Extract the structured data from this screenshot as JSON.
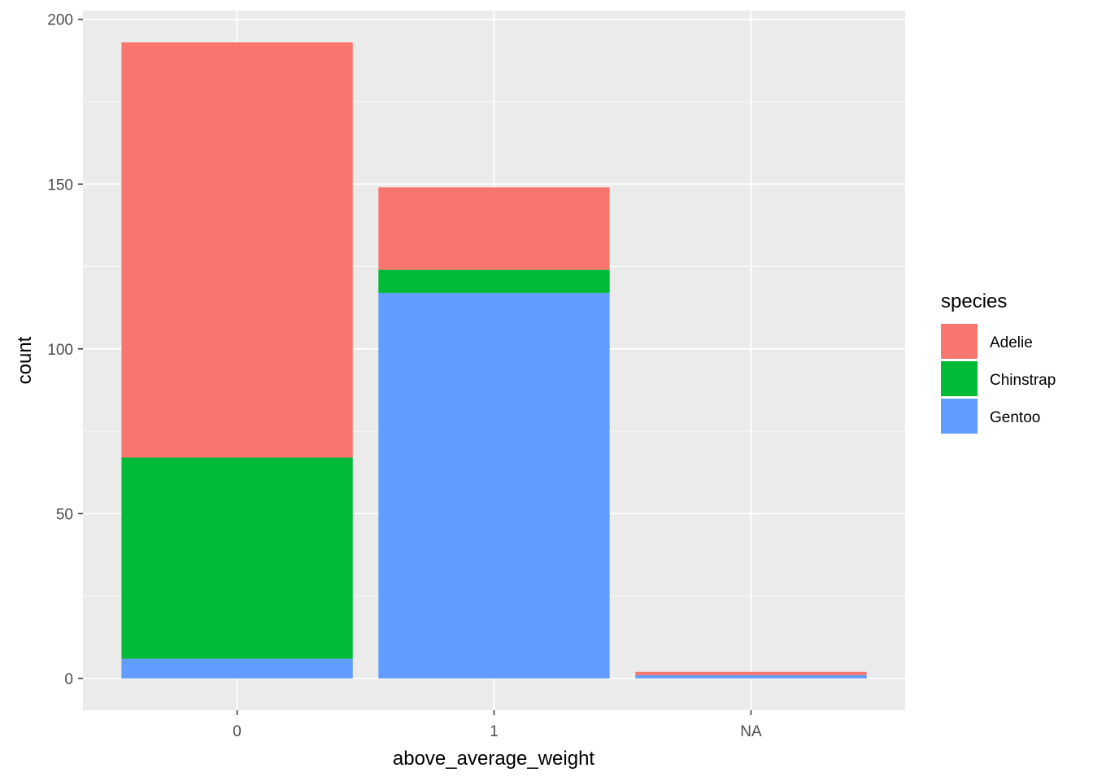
{
  "chart_data": {
    "type": "bar",
    "stacked": true,
    "categories": [
      "0",
      "1",
      "NA"
    ],
    "series": [
      {
        "name": "Adelie",
        "color": "#F8766D",
        "values": [
          126,
          25,
          1
        ]
      },
      {
        "name": "Chinstrap",
        "color": "#00BA38",
        "values": [
          61,
          7,
          0
        ]
      },
      {
        "name": "Gentoo",
        "color": "#619CFF",
        "values": [
          6,
          117,
          1
        ]
      }
    ],
    "stack_order_bottom_to_top": [
      "Gentoo",
      "Chinstrap",
      "Adelie"
    ],
    "xlabel": "above_average_weight",
    "ylabel": "count",
    "ylim": [
      -9.65,
      202.65
    ],
    "yticks": [
      0,
      50,
      100,
      150,
      200
    ],
    "ytick_labels": [
      "0",
      "50",
      "100",
      "150",
      "200"
    ],
    "legend": {
      "title": "species",
      "placement": "right"
    },
    "grid": true,
    "panel_background": "#EBEBEB",
    "grid_color": "#FFFFFF"
  }
}
